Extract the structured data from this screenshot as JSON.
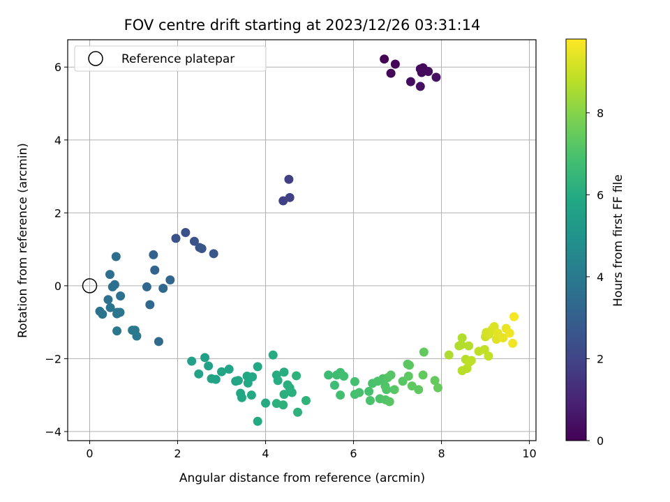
{
  "chart_data": {
    "type": "scatter",
    "title": "FOV centre drift starting at 2023/12/26 03:31:14",
    "xlabel": "Angular distance from reference (arcmin)",
    "ylabel": "Rotation from reference (arcmin)",
    "xlim": [
      -0.5,
      10.15
    ],
    "ylim": [
      -4.25,
      6.75
    ],
    "xticks": [
      0,
      2,
      4,
      6,
      8,
      10
    ],
    "yticks": [
      -4,
      -2,
      0,
      2,
      4,
      6
    ],
    "grid": true,
    "legend": {
      "placement": "upper-left",
      "entries": [
        "Reference platepar"
      ]
    },
    "reference_point": {
      "x": 0,
      "y": 0
    },
    "colormap": "viridis",
    "colorbar": {
      "label": "Hours from first FF file",
      "range": [
        0,
        9.8
      ],
      "ticks": [
        0,
        2,
        4,
        6,
        8
      ]
    },
    "points": [
      {
        "x": 6.7,
        "y": 6.22,
        "t": 0.0
      },
      {
        "x": 6.95,
        "y": 6.08,
        "t": 0.08
      },
      {
        "x": 6.85,
        "y": 5.83,
        "t": 0.15
      },
      {
        "x": 7.52,
        "y": 5.95,
        "t": 0.2
      },
      {
        "x": 7.58,
        "y": 5.98,
        "t": 0.22
      },
      {
        "x": 7.7,
        "y": 5.88,
        "t": 0.28
      },
      {
        "x": 7.55,
        "y": 5.85,
        "t": 0.3
      },
      {
        "x": 7.3,
        "y": 5.6,
        "t": 0.35
      },
      {
        "x": 7.52,
        "y": 5.47,
        "t": 0.4
      },
      {
        "x": 7.88,
        "y": 5.72,
        "t": 0.45
      },
      {
        "x": 4.53,
        "y": 2.92,
        "t": 1.8
      },
      {
        "x": 4.4,
        "y": 2.33,
        "t": 1.85
      },
      {
        "x": 4.55,
        "y": 2.42,
        "t": 1.9
      },
      {
        "x": 2.18,
        "y": 1.46,
        "t": 2.4
      },
      {
        "x": 1.96,
        "y": 1.3,
        "t": 2.45
      },
      {
        "x": 2.38,
        "y": 1.22,
        "t": 2.5
      },
      {
        "x": 2.5,
        "y": 1.05,
        "t": 2.55
      },
      {
        "x": 2.55,
        "y": 1.02,
        "t": 2.6
      },
      {
        "x": 2.82,
        "y": 0.88,
        "t": 2.65
      },
      {
        "x": 1.45,
        "y": 0.85,
        "t": 3.1
      },
      {
        "x": 1.48,
        "y": 0.43,
        "t": 3.15
      },
      {
        "x": 1.83,
        "y": 0.16,
        "t": 3.2
      },
      {
        "x": 1.3,
        "y": -0.03,
        "t": 3.25
      },
      {
        "x": 1.67,
        "y": -0.07,
        "t": 3.3
      },
      {
        "x": 1.37,
        "y": -0.52,
        "t": 3.35
      },
      {
        "x": 1.57,
        "y": -1.53,
        "t": 3.4
      },
      {
        "x": 0.6,
        "y": 0.8,
        "t": 3.5
      },
      {
        "x": 0.46,
        "y": 0.31,
        "t": 3.55
      },
      {
        "x": 0.57,
        "y": 0.03,
        "t": 3.6
      },
      {
        "x": 0.52,
        "y": -0.03,
        "t": 3.62
      },
      {
        "x": 0.7,
        "y": -0.28,
        "t": 3.65
      },
      {
        "x": 0.42,
        "y": -0.38,
        "t": 3.7
      },
      {
        "x": 0.47,
        "y": -0.6,
        "t": 3.72
      },
      {
        "x": 0.23,
        "y": -0.7,
        "t": 3.75
      },
      {
        "x": 0.29,
        "y": -0.78,
        "t": 3.78
      },
      {
        "x": 0.63,
        "y": -0.73,
        "t": 3.8
      },
      {
        "x": 0.69,
        "y": -0.73,
        "t": 3.82
      },
      {
        "x": 0.62,
        "y": -0.77,
        "t": 3.85
      },
      {
        "x": 0.62,
        "y": -1.24,
        "t": 3.9
      },
      {
        "x": 0.97,
        "y": -1.22,
        "t": 3.95
      },
      {
        "x": 1.03,
        "y": -1.22,
        "t": 3.97
      },
      {
        "x": 1.07,
        "y": -1.38,
        "t": 4.0
      },
      {
        "x": 2.32,
        "y": -2.07,
        "t": 5.5
      },
      {
        "x": 2.62,
        "y": -1.97,
        "t": 5.55
      },
      {
        "x": 2.7,
        "y": -2.2,
        "t": 5.6
      },
      {
        "x": 2.48,
        "y": -2.42,
        "t": 5.62
      },
      {
        "x": 2.77,
        "y": -2.55,
        "t": 5.65
      },
      {
        "x": 2.87,
        "y": -2.57,
        "t": 5.68
      },
      {
        "x": 3.0,
        "y": -2.36,
        "t": 5.7
      },
      {
        "x": 3.17,
        "y": -2.29,
        "t": 5.72
      },
      {
        "x": 3.32,
        "y": -2.62,
        "t": 5.75
      },
      {
        "x": 3.38,
        "y": -2.6,
        "t": 5.78
      },
      {
        "x": 3.43,
        "y": -2.95,
        "t": 5.8
      },
      {
        "x": 3.46,
        "y": -3.07,
        "t": 5.82
      },
      {
        "x": 3.58,
        "y": -2.48,
        "t": 5.85
      },
      {
        "x": 3.6,
        "y": -2.67,
        "t": 5.87
      },
      {
        "x": 3.7,
        "y": -2.5,
        "t": 5.88
      },
      {
        "x": 3.82,
        "y": -2.22,
        "t": 5.9
      },
      {
        "x": 3.68,
        "y": -3.0,
        "t": 5.92
      },
      {
        "x": 3.82,
        "y": -3.72,
        "t": 5.95
      },
      {
        "x": 4.0,
        "y": -3.22,
        "t": 5.97
      },
      {
        "x": 4.17,
        "y": -1.9,
        "t": 6.0
      },
      {
        "x": 4.25,
        "y": -2.45,
        "t": 6.02
      },
      {
        "x": 4.28,
        "y": -2.6,
        "t": 6.05
      },
      {
        "x": 4.42,
        "y": -2.37,
        "t": 6.07
      },
      {
        "x": 4.5,
        "y": -2.72,
        "t": 6.1
      },
      {
        "x": 4.55,
        "y": -2.8,
        "t": 6.12
      },
      {
        "x": 4.42,
        "y": -2.98,
        "t": 6.15
      },
      {
        "x": 4.6,
        "y": -2.93,
        "t": 6.17
      },
      {
        "x": 4.25,
        "y": -3.23,
        "t": 6.2
      },
      {
        "x": 4.4,
        "y": -3.27,
        "t": 6.22
      },
      {
        "x": 4.7,
        "y": -2.47,
        "t": 6.25
      },
      {
        "x": 4.73,
        "y": -3.47,
        "t": 6.27
      },
      {
        "x": 4.92,
        "y": -3.15,
        "t": 6.3
      },
      {
        "x": 5.43,
        "y": -2.45,
        "t": 6.7
      },
      {
        "x": 5.57,
        "y": -2.73,
        "t": 6.72
      },
      {
        "x": 5.62,
        "y": -2.45,
        "t": 6.75
      },
      {
        "x": 5.7,
        "y": -2.38,
        "t": 6.77
      },
      {
        "x": 5.78,
        "y": -2.48,
        "t": 6.8
      },
      {
        "x": 5.7,
        "y": -3.0,
        "t": 6.82
      },
      {
        "x": 6.03,
        "y": -2.63,
        "t": 6.85
      },
      {
        "x": 6.03,
        "y": -2.98,
        "t": 6.87
      },
      {
        "x": 6.13,
        "y": -2.93,
        "t": 6.9
      },
      {
        "x": 6.35,
        "y": -2.9,
        "t": 6.92
      },
      {
        "x": 6.43,
        "y": -2.68,
        "t": 6.95
      },
      {
        "x": 6.38,
        "y": -3.15,
        "t": 6.97
      },
      {
        "x": 6.55,
        "y": -2.62,
        "t": 7.0
      },
      {
        "x": 6.6,
        "y": -3.1,
        "t": 7.02
      },
      {
        "x": 6.67,
        "y": -2.55,
        "t": 7.05
      },
      {
        "x": 6.72,
        "y": -2.75,
        "t": 7.07
      },
      {
        "x": 6.75,
        "y": -2.85,
        "t": 7.1
      },
      {
        "x": 6.73,
        "y": -3.13,
        "t": 7.12
      },
      {
        "x": 6.78,
        "y": -2.52,
        "t": 7.15
      },
      {
        "x": 6.85,
        "y": -2.45,
        "t": 7.17
      },
      {
        "x": 6.82,
        "y": -3.18,
        "t": 7.2
      },
      {
        "x": 6.93,
        "y": -2.85,
        "t": 7.22
      },
      {
        "x": 7.12,
        "y": -2.62,
        "t": 7.25
      },
      {
        "x": 7.23,
        "y": -2.15,
        "t": 7.27
      },
      {
        "x": 7.27,
        "y": -2.18,
        "t": 7.3
      },
      {
        "x": 7.25,
        "y": -2.48,
        "t": 7.32
      },
      {
        "x": 7.33,
        "y": -2.75,
        "t": 7.35
      },
      {
        "x": 7.48,
        "y": -2.85,
        "t": 7.37
      },
      {
        "x": 7.58,
        "y": -2.45,
        "t": 7.4
      },
      {
        "x": 7.6,
        "y": -1.82,
        "t": 7.42
      },
      {
        "x": 7.85,
        "y": -2.6,
        "t": 7.45
      },
      {
        "x": 7.92,
        "y": -2.8,
        "t": 7.47
      },
      {
        "x": 8.17,
        "y": -1.9,
        "t": 8.6
      },
      {
        "x": 8.4,
        "y": -1.65,
        "t": 8.62
      },
      {
        "x": 8.47,
        "y": -1.43,
        "t": 8.65
      },
      {
        "x": 8.45,
        "y": -1.62,
        "t": 8.67
      },
      {
        "x": 8.62,
        "y": -1.65,
        "t": 8.7
      },
      {
        "x": 8.47,
        "y": -2.33,
        "t": 8.72
      },
      {
        "x": 8.55,
        "y": -2.02,
        "t": 8.75
      },
      {
        "x": 8.58,
        "y": -2.27,
        "t": 8.77
      },
      {
        "x": 8.63,
        "y": -2.1,
        "t": 8.8
      },
      {
        "x": 8.68,
        "y": -2.05,
        "t": 8.82
      },
      {
        "x": 8.85,
        "y": -1.8,
        "t": 8.85
      },
      {
        "x": 8.98,
        "y": -1.75,
        "t": 8.87
      },
      {
        "x": 9.07,
        "y": -1.93,
        "t": 8.9
      },
      {
        "x": 9.0,
        "y": -1.4,
        "t": 9.1
      },
      {
        "x": 9.02,
        "y": -1.28,
        "t": 9.15
      },
      {
        "x": 9.08,
        "y": -1.33,
        "t": 9.2
      },
      {
        "x": 9.15,
        "y": -1.2,
        "t": 9.25
      },
      {
        "x": 9.2,
        "y": -1.12,
        "t": 9.3
      },
      {
        "x": 9.25,
        "y": -1.47,
        "t": 9.35
      },
      {
        "x": 9.28,
        "y": -1.3,
        "t": 9.4
      },
      {
        "x": 9.4,
        "y": -1.43,
        "t": 9.45
      },
      {
        "x": 9.47,
        "y": -1.17,
        "t": 9.5
      },
      {
        "x": 9.55,
        "y": -1.3,
        "t": 9.55
      },
      {
        "x": 9.62,
        "y": -1.58,
        "t": 9.6
      },
      {
        "x": 9.65,
        "y": -0.85,
        "t": 9.7
      }
    ]
  }
}
